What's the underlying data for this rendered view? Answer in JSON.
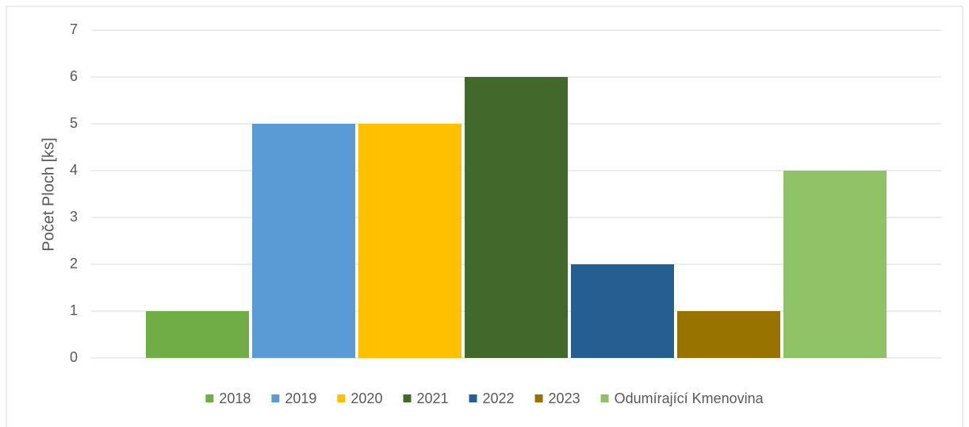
{
  "chart_data": {
    "type": "bar",
    "y_label": "Počet Ploch [ks]",
    "categories": [
      null
    ],
    "series": [
      {
        "name": "2018",
        "color": "#70ad47",
        "values": [
          1
        ]
      },
      {
        "name": "2019",
        "color": "#5b9bd5",
        "values": [
          5
        ]
      },
      {
        "name": "2020",
        "color": "#ffc000",
        "values": [
          5
        ]
      },
      {
        "name": "2021",
        "color": "#43682b",
        "values": [
          6
        ]
      },
      {
        "name": "2022",
        "color": "#255e91",
        "values": [
          2
        ]
      },
      {
        "name": "2023",
        "color": "#997300",
        "values": [
          1
        ]
      },
      {
        "name": "Odumírající Kmenovina",
        "color": "#8fc266",
        "values": [
          4
        ]
      }
    ],
    "ylim": [
      0,
      7
    ],
    "yticks": [
      0,
      1,
      2,
      3,
      4,
      5,
      6,
      7
    ],
    "grid": true,
    "legend": "bottom"
  }
}
